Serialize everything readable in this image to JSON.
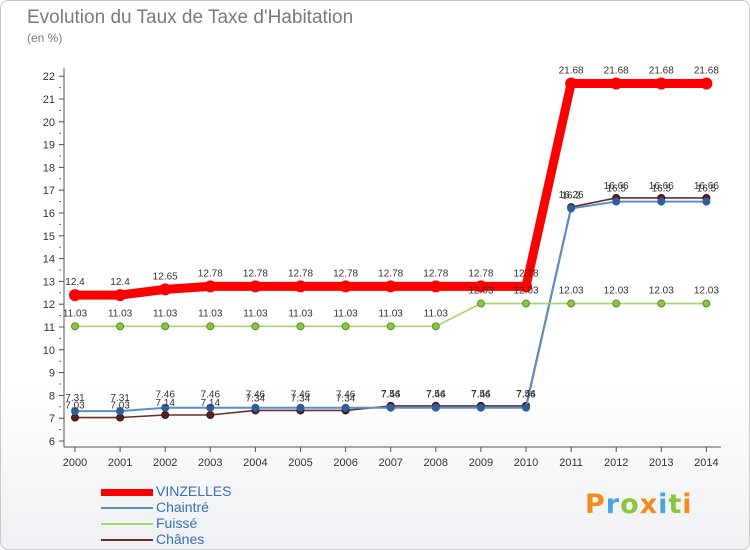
{
  "title": "Evolution du Taux de Taxe d'Habitation",
  "unit": "(en %)",
  "brand": {
    "letters": [
      "P",
      "r",
      "o",
      "x",
      "i",
      "t",
      "i"
    ],
    "colors": [
      "#f28c1a",
      "#4aa3df",
      "#8cc63f",
      "#f28c1a",
      "#4aa3df",
      "#8cc63f",
      "#f28c1a"
    ]
  },
  "chart_data": {
    "type": "line",
    "x": [
      "2000",
      "2001",
      "2002",
      "2003",
      "2004",
      "2005",
      "2006",
      "2007",
      "2008",
      "2009",
      "2010",
      "2011",
      "2012",
      "2013",
      "2014"
    ],
    "y_ticks": [
      6,
      7,
      8,
      9,
      10,
      11,
      12,
      13,
      14,
      15,
      16,
      17,
      18,
      19,
      20,
      21,
      22
    ],
    "ylim": [
      6,
      22
    ],
    "grid": false,
    "legend_position": "bottom-left",
    "series": [
      {
        "name": "VINZELLES",
        "color": "#ff0000",
        "values": [
          12.4,
          12.4,
          12.65,
          12.78,
          12.78,
          12.78,
          12.78,
          12.78,
          12.78,
          12.78,
          12.78,
          21.68,
          21.68,
          21.68,
          21.68
        ],
        "labels": [
          "12.4",
          "12.4",
          "12.65",
          "12.78",
          "12.78",
          "12.78",
          "12.78",
          "12.78",
          "12.78",
          "12.78",
          "12.78",
          "21.68",
          "21.68",
          "21.68",
          "21.68"
        ]
      },
      {
        "name": "Chaintré",
        "color": "#5b8fc9",
        "values": [
          7.31,
          7.31,
          7.46,
          7.46,
          7.46,
          7.46,
          7.46,
          7.46,
          7.46,
          7.46,
          7.46,
          16.2,
          16.5,
          16.5,
          16.5
        ],
        "labels": [
          "7.31",
          "7.31",
          "7.46",
          "7.46",
          "7.46",
          "7.46",
          "7.46",
          "7.46",
          "7.46",
          "7.46",
          "7.46",
          "16.2",
          "16.5",
          "16.5",
          "16.5"
        ]
      },
      {
        "name": "Fuissé",
        "color": "#9fd86a",
        "values": [
          11.03,
          11.03,
          11.03,
          11.03,
          11.03,
          11.03,
          11.03,
          11.03,
          11.03,
          12.03,
          12.03,
          12.03,
          12.03,
          12.03,
          12.03
        ],
        "labels": [
          "11.03",
          "11.03",
          "11.03",
          "11.03",
          "11.03",
          "11.03",
          "11.03",
          "11.03",
          "11.03",
          "12.03",
          "12.03",
          "12.03",
          "12.03",
          "12.03",
          "12.03"
        ]
      },
      {
        "name": "Chânes",
        "color": "#6b2c2c",
        "values": [
          7.03,
          7.03,
          7.14,
          7.14,
          7.34,
          7.34,
          7.34,
          7.54,
          7.54,
          7.54,
          7.54,
          16.26,
          16.66,
          16.66,
          16.66
        ],
        "labels": [
          "7.03",
          "7.03",
          "7.14",
          "7.14",
          "7.34",
          "7.34",
          "7.34",
          "7.54",
          "7.54",
          "7.54",
          "7.54",
          "16.26",
          "16.66",
          "16.66",
          "16.66"
        ]
      }
    ]
  }
}
